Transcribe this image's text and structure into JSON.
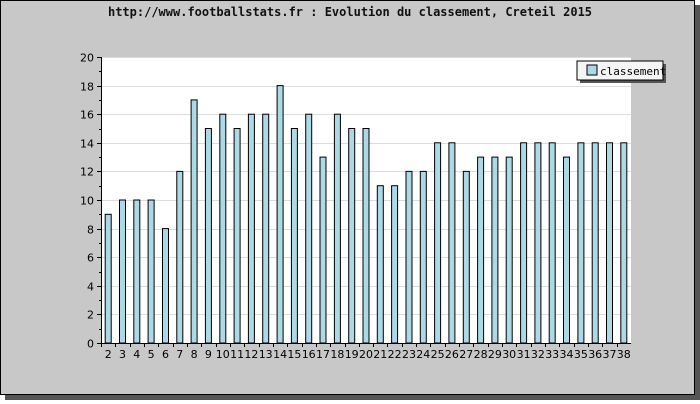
{
  "chart_data": {
    "type": "bar",
    "title": "http://www.footballstats.fr : Evolution du classement, Creteil 2015",
    "xlabel": "",
    "ylabel": "",
    "ylim": [
      0,
      20
    ],
    "yticks": [
      "0",
      "2",
      "4",
      "6",
      "8",
      "10",
      "12",
      "14",
      "16",
      "18",
      "20"
    ],
    "categories": [
      "2",
      "3",
      "4",
      "5",
      "6",
      "7",
      "8",
      "9",
      "10",
      "11",
      "12",
      "13",
      "14",
      "15",
      "16",
      "17",
      "18",
      "19",
      "20",
      "21",
      "22",
      "23",
      "24",
      "25",
      "26",
      "27",
      "28",
      "29",
      "30",
      "31",
      "32",
      "33",
      "34",
      "35",
      "36",
      "37",
      "38"
    ],
    "series": [
      {
        "name": "classement",
        "color": "#add8e6",
        "values": [
          9,
          10,
          10,
          10,
          8,
          12,
          17,
          15,
          16,
          15,
          16,
          16,
          18,
          15,
          16,
          13,
          16,
          15,
          15,
          11,
          11,
          12,
          12,
          14,
          14,
          12,
          13,
          13,
          13,
          14,
          14,
          14,
          13,
          14,
          14,
          14,
          14
        ]
      }
    ],
    "grid": true,
    "legend": "top-right",
    "colors": {
      "background": "#c8c8c8",
      "plot": "#ffffff",
      "bar_fill": "#add8e6",
      "bar_stroke": "#000000",
      "grid": "#dcdcdc"
    }
  }
}
